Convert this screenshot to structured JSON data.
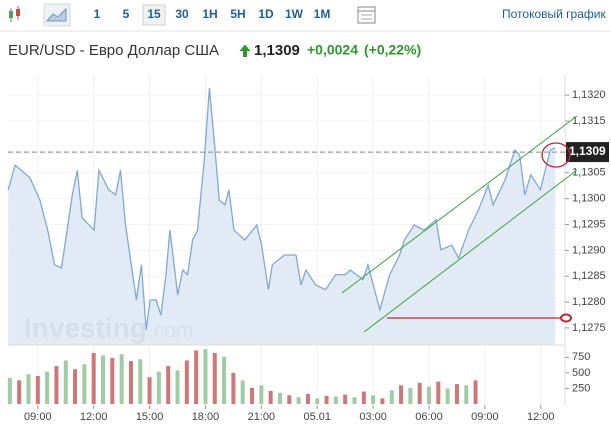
{
  "toolbar": {
    "intervals": [
      "1",
      "5",
      "15",
      "30",
      "1H",
      "5H",
      "1D",
      "1W",
      "1M"
    ],
    "selected": 2,
    "streaming": "Потоковый график"
  },
  "header": {
    "symbol": "EUR/USD - Евро Доллар США",
    "price": "1,1309",
    "change": "+0,0024",
    "change_pct": "(+0,22%)"
  },
  "chart_data": [
    {
      "type": "line",
      "color": "#7fa9d3",
      "fill": "#dfe9f4",
      "grid": true,
      "watermark": [
        "Investing",
        ".com"
      ],
      "last_price": 1.1309,
      "x": [
        -1.59,
        -1.22,
        -0.42,
        0.11,
        0.53,
        0.9,
        1.27,
        1.85,
        2.12,
        2.38,
        3.02,
        3.28,
        3.81,
        4.18,
        4.44,
        4.71,
        5.29,
        5.56,
        5.82,
        6.03,
        6.35,
        6.61,
        6.88,
        7.09,
        7.51,
        7.78,
        8.04,
        8.31,
        8.57,
        8.94,
        9.21,
        9.47,
        9.74,
        10.05,
        10.26,
        10.53,
        11.11,
        11.75,
        12.01,
        12.38,
        12.59,
        13.23,
        13.86,
        14.13,
        14.39,
        14.92,
        15.45,
        15.98,
        16.51,
        16.77,
        17.46,
        17.72,
        18.36,
        18.89,
        19.42,
        19.68,
        20.21,
        20.74,
        21.38,
        21.64,
        22.22,
        22.59,
        23.12,
        23.65,
        24.18,
        24.44,
        25.08,
        25.61,
        25.87,
        26.14,
        26.46,
        26.98,
        27.51,
        27.78
      ],
      "values": [
        1.13017,
        1.13065,
        1.1304,
        1.12997,
        1.12939,
        1.12872,
        1.12866,
        1.13007,
        1.13055,
        1.12963,
        1.12939,
        1.13055,
        1.13017,
        1.13007,
        1.13055,
        1.12949,
        1.12804,
        1.12872,
        1.12746,
        1.12804,
        1.12804,
        1.12775,
        1.12853,
        1.12939,
        1.12814,
        1.12862,
        1.12853,
        1.1292,
        1.12939,
        1.13075,
        1.13214,
        1.13113,
        1.12997,
        1.12988,
        1.13017,
        1.12939,
        1.1292,
        1.12949,
        1.12911,
        1.12824,
        1.12872,
        1.12891,
        1.12891,
        1.12833,
        1.12862,
        1.12833,
        1.12824,
        1.12853,
        1.12853,
        1.12862,
        1.12843,
        1.12872,
        1.12785,
        1.12853,
        1.12891,
        1.1292,
        1.12949,
        1.12939,
        1.12959,
        1.12901,
        1.1291,
        1.12885,
        1.12939,
        1.12978,
        1.13026,
        1.12988,
        1.13036,
        1.13094,
        1.13084,
        1.13007,
        1.13046,
        1.13017,
        1.13094,
        1.13098
      ],
      "xlim": [
        -1.6,
        28.3
      ],
      "xticks": [
        {
          "value": 0,
          "label": "09:00"
        },
        {
          "value": 3,
          "label": "12:00"
        },
        {
          "value": 6,
          "label": "15:00"
        },
        {
          "value": 9,
          "label": "18:00"
        },
        {
          "value": 12,
          "label": "21:00"
        },
        {
          "value": 15,
          "label": "05.01"
        },
        {
          "value": 18,
          "label": "03:00"
        },
        {
          "value": 21,
          "label": "06:00"
        },
        {
          "value": 24,
          "label": "09:00"
        },
        {
          "value": 27,
          "label": "12:00"
        }
      ],
      "ylim": [
        1.12717,
        1.13239
      ],
      "yticks": [
        {
          "value": 1.1275,
          "label": "1,1275"
        },
        {
          "value": 1.128,
          "label": "1,1280"
        },
        {
          "value": 1.1285,
          "label": "1,1285"
        },
        {
          "value": 1.129,
          "label": "1,1290"
        },
        {
          "value": 1.1295,
          "label": "1,1295"
        },
        {
          "value": 1.13,
          "label": "1,1300"
        },
        {
          "value": 1.1305,
          "label": "1,1305"
        },
        {
          "value": 1.1315,
          "label": "1,1315"
        },
        {
          "value": 1.132,
          "label": "1,1320"
        }
      ]
    },
    {
      "type": "bar",
      "x": [
        -1.5,
        -1,
        -0.5,
        0,
        0.5,
        1,
        1.5,
        2,
        2.5,
        3,
        3.5,
        4,
        4.5,
        5,
        5.5,
        6,
        6.5,
        7,
        7.5,
        8,
        8.5,
        9,
        9.5,
        10,
        10.5,
        11,
        11.5,
        12,
        12.5,
        13,
        13.5,
        14,
        14.5,
        15,
        15.5,
        16,
        16.5,
        17,
        17.5,
        18,
        18.5,
        19,
        19.5,
        20,
        20.5,
        21,
        21.5,
        22,
        22.5,
        23,
        23.5
      ],
      "values": [
        420,
        380,
        480,
        450,
        520,
        610,
        700,
        560,
        640,
        820,
        780,
        740,
        800,
        690,
        720,
        430,
        520,
        610,
        540,
        700,
        860,
        880,
        820,
        760,
        500,
        380,
        260,
        300,
        210,
        180,
        140,
        110,
        160,
        90,
        130,
        120,
        150,
        110,
        200,
        140,
        90,
        220,
        300,
        260,
        340,
        280,
        360,
        250,
        320,
        300,
        380
      ],
      "colors": [
        "#9fcca4",
        "#cf7676",
        "#9fcca4",
        "#cf7676",
        "#9fcca4",
        "#cf7676",
        "#9fcca4",
        "#cf7676",
        "#9fcca4",
        "#cf7676",
        "#9fcca4",
        "#cf7676",
        "#9fcca4",
        "#cf7676",
        "#9fcca4",
        "#cf7676",
        "#9fcca4",
        "#cf7676",
        "#9fcca4",
        "#cf7676",
        "#cf7676",
        "#9fcca4",
        "#cf7676",
        "#9fcca4",
        "#cf7676",
        "#9fcca4",
        "#cf7676",
        "#9fcca4",
        "#cf7676",
        "#9fcca4",
        "#cf7676",
        "#9fcca4",
        "#cf7676",
        "#9fcca4",
        "#cf7676",
        "#9fcca4",
        "#cf7676",
        "#9fcca4",
        "#cf7676",
        "#9fcca4",
        "#cf7676",
        "#9fcca4",
        "#cf7676",
        "#9fcca4",
        "#cf7676",
        "#9fcca4",
        "#cf7676",
        "#9fcca4",
        "#cf7676",
        "#9fcca4",
        "#cf7676"
      ],
      "xlim": [
        -1.6,
        28.3
      ],
      "ylim": [
        0,
        900
      ],
      "yticks": [
        250,
        500,
        750
      ]
    }
  ]
}
